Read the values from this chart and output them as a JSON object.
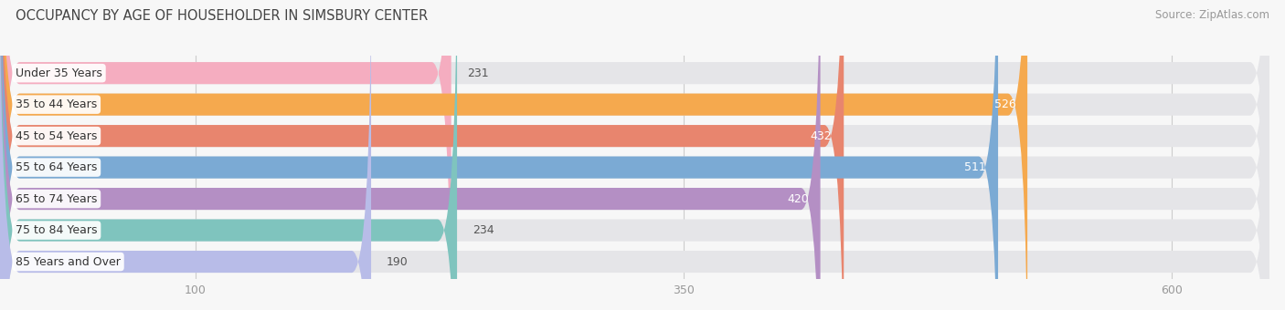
{
  "title": "OCCUPANCY BY AGE OF HOUSEHOLDER IN SIMSBURY CENTER",
  "source": "Source: ZipAtlas.com",
  "categories": [
    "Under 35 Years",
    "35 to 44 Years",
    "45 to 54 Years",
    "55 to 64 Years",
    "65 to 74 Years",
    "75 to 84 Years",
    "85 Years and Over"
  ],
  "values": [
    231,
    526,
    432,
    511,
    420,
    234,
    190
  ],
  "bar_colors": [
    "#f5adc0",
    "#f5a94e",
    "#e8856e",
    "#7baad4",
    "#b48fc4",
    "#7fc4be",
    "#b8bce8"
  ],
  "bar_bg_color": "#e5e5e8",
  "xmin": 0,
  "xmax": 650,
  "xticks": [
    100,
    350,
    600
  ],
  "bar_height": 0.7,
  "label_fontsize": 9,
  "value_fontsize": 9,
  "title_fontsize": 10.5,
  "source_fontsize": 8.5,
  "background_color": "#f7f7f7",
  "label_bg_color": "#ffffff",
  "rounding_size": 10
}
